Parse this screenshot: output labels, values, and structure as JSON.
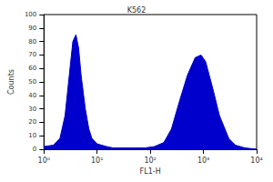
{
  "chart_data": {
    "type": "area",
    "title": "K562",
    "xlabel": "FL1-H",
    "ylabel": "Counts",
    "log": "x",
    "color": "#0000cc",
    "grid": false,
    "x": [
      1,
      1.5,
      2,
      2.5,
      3,
      3.5,
      4,
      4.5,
      5,
      6,
      7,
      8,
      10,
      15,
      20,
      30,
      50,
      80,
      120,
      180,
      250,
      350,
      500,
      700,
      900,
      1100,
      1500,
      2000,
      3000,
      4000,
      6000,
      10000
    ],
    "values": [
      2,
      3,
      8,
      25,
      55,
      80,
      85,
      75,
      55,
      30,
      15,
      8,
      4,
      2,
      1,
      1,
      1,
      1,
      2,
      5,
      15,
      35,
      55,
      68,
      70,
      65,
      45,
      25,
      8,
      3,
      1,
      0
    ],
    "xlim": [
      1,
      10000
    ],
    "xticks": [
      {
        "value": 1,
        "label": "10⁰"
      },
      {
        "value": 10,
        "label": "10¹"
      },
      {
        "value": 100,
        "label": "10²"
      },
      {
        "value": 1000,
        "label": "10³"
      },
      {
        "value": 10000,
        "label": "10⁴"
      }
    ],
    "ylim": [
      0,
      100
    ],
    "yticks": [
      0,
      10,
      20,
      30,
      40,
      50,
      60,
      70,
      80,
      90,
      100
    ]
  }
}
